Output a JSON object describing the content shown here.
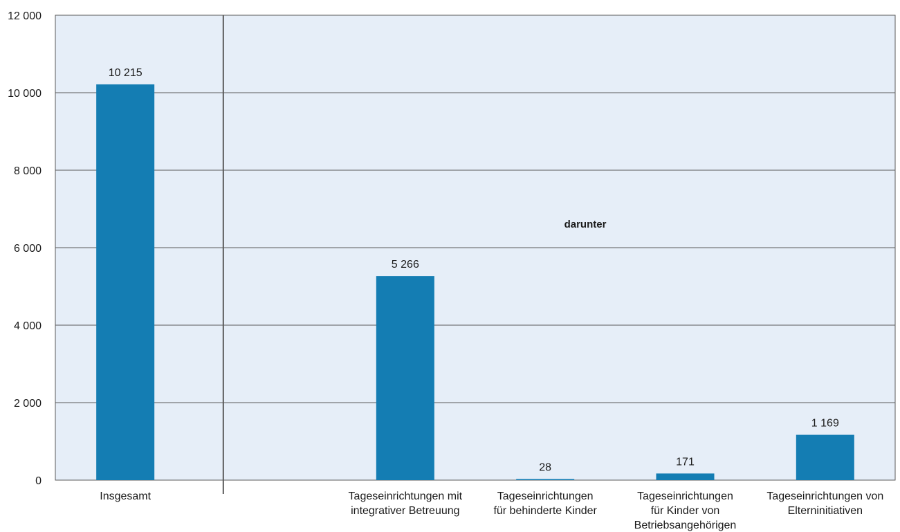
{
  "chart_data": {
    "type": "bar",
    "categories": [
      [
        "Insgesamt"
      ],
      [],
      [
        "Tageseinrichtungen mit",
        "integrativer Betreuung"
      ],
      [
        "Tageseinrichtungen",
        "für behinderte Kinder"
      ],
      [
        "Tageseinrichtungen",
        "für Kinder von",
        "Betriebsangehörigen"
      ],
      [
        "Tageseinrichtungen von",
        "Elterninitiativen"
      ]
    ],
    "values": [
      10215,
      null,
      5266,
      28,
      171,
      1169
    ],
    "data_labels": [
      "10 215",
      "",
      "5 266",
      "28",
      "171",
      "1 169"
    ],
    "y_ticks": [
      0,
      2000,
      4000,
      6000,
      8000,
      10000,
      12000
    ],
    "y_tick_labels": [
      "0",
      "2 000",
      "4 000",
      "6 000",
      "8 000",
      "10 000",
      "12 000"
    ],
    "ylim": [
      0,
      12000
    ],
    "grid": true,
    "annotation": "darunter",
    "colors": {
      "bar": "#147db3",
      "plot_bg": "#e6eef8",
      "grid": "#5a5a5a",
      "divider": "#5a5a5a"
    }
  }
}
